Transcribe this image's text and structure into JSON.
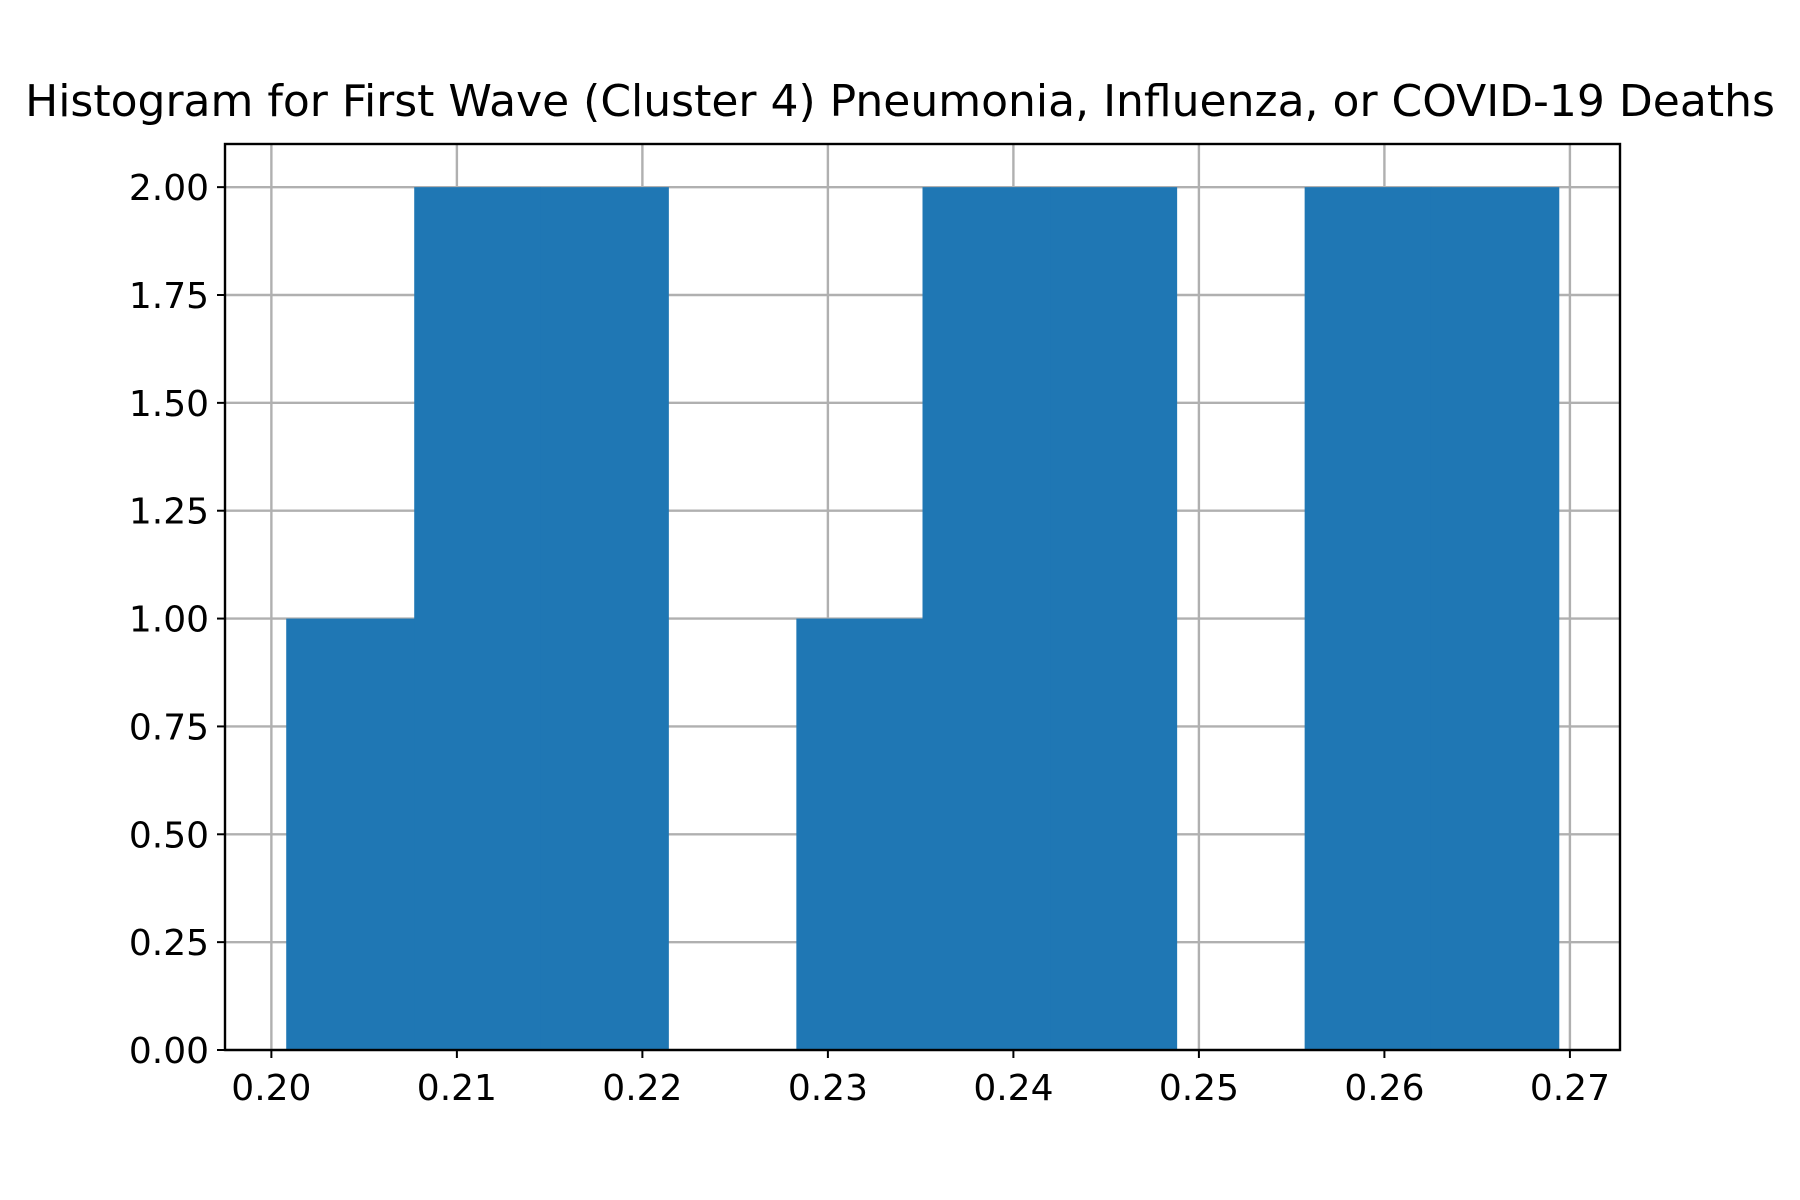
{
  "chart_data": {
    "type": "bar",
    "title": "Histogram for First Wave (Cluster 4) Pneumonia, Influenza, or COVID-19 Deaths",
    "xlabel": "",
    "ylabel": "",
    "xlim": [
      0.1975,
      0.2727
    ],
    "ylim": [
      0,
      2.1
    ],
    "grid": true,
    "bar_color": "#1f77b4",
    "bins": [
      {
        "x0": 0.2008,
        "x1": 0.2077,
        "value": 1
      },
      {
        "x0": 0.2077,
        "x1": 0.2145,
        "value": 2
      },
      {
        "x0": 0.2145,
        "x1": 0.2214,
        "value": 2
      },
      {
        "x0": 0.2214,
        "x1": 0.2283,
        "value": 0
      },
      {
        "x0": 0.2283,
        "x1": 0.2351,
        "value": 1
      },
      {
        "x0": 0.2351,
        "x1": 0.242,
        "value": 2
      },
      {
        "x0": 0.242,
        "x1": 0.2488,
        "value": 2
      },
      {
        "x0": 0.2488,
        "x1": 0.2557,
        "value": 0
      },
      {
        "x0": 0.2557,
        "x1": 0.2625,
        "value": 2
      },
      {
        "x0": 0.2625,
        "x1": 0.2694,
        "value": 2
      }
    ],
    "x_ticks": [
      {
        "value": 0.2,
        "label": "0.20"
      },
      {
        "value": 0.21,
        "label": "0.21"
      },
      {
        "value": 0.22,
        "label": "0.22"
      },
      {
        "value": 0.23,
        "label": "0.23"
      },
      {
        "value": 0.24,
        "label": "0.24"
      },
      {
        "value": 0.25,
        "label": "0.25"
      },
      {
        "value": 0.26,
        "label": "0.26"
      },
      {
        "value": 0.27,
        "label": "0.27"
      }
    ],
    "y_ticks": [
      {
        "value": 0.0,
        "label": "0.00"
      },
      {
        "value": 0.25,
        "label": "0.25"
      },
      {
        "value": 0.5,
        "label": "0.50"
      },
      {
        "value": 0.75,
        "label": "0.75"
      },
      {
        "value": 1.0,
        "label": "1.00"
      },
      {
        "value": 1.25,
        "label": "1.25"
      },
      {
        "value": 1.5,
        "label": "1.50"
      },
      {
        "value": 1.75,
        "label": "1.75"
      },
      {
        "value": 2.0,
        "label": "2.00"
      }
    ]
  }
}
